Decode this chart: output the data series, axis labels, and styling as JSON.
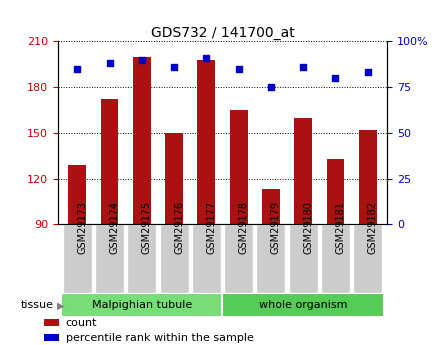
{
  "title": "GDS732 / 141700_at",
  "samples": [
    "GSM29173",
    "GSM29174",
    "GSM29175",
    "GSM29176",
    "GSM29177",
    "GSM29178",
    "GSM29179",
    "GSM29180",
    "GSM29181",
    "GSM29182"
  ],
  "counts": [
    129,
    172,
    200,
    150,
    198,
    165,
    113,
    160,
    133,
    152
  ],
  "percentiles": [
    85,
    88,
    90,
    86,
    91,
    85,
    75,
    86,
    80,
    83
  ],
  "ylim_left": [
    90,
    210
  ],
  "ylim_right": [
    0,
    100
  ],
  "yticks_left": [
    90,
    120,
    150,
    180,
    210
  ],
  "yticks_right": [
    0,
    25,
    50,
    75,
    100
  ],
  "bar_color": "#aa1111",
  "dot_color": "#0000cc",
  "bar_bottom": 90,
  "tissue_groups": [
    {
      "label": "Malpighian tubule",
      "start": 0,
      "end": 5,
      "color": "#77dd77"
    },
    {
      "label": "whole organism",
      "start": 5,
      "end": 10,
      "color": "#55cc55"
    }
  ],
  "legend_items": [
    {
      "label": "count",
      "color": "#aa1111"
    },
    {
      "label": "percentile rank within the sample",
      "color": "#0000cc"
    }
  ],
  "tissue_label": "tissue",
  "tick_label_color_left": "#cc0000",
  "tick_label_color_right": "#0000cc",
  "right_axis_suffix": "%",
  "xtick_bg_color": "#cccccc",
  "fig_bg": "#ffffff"
}
